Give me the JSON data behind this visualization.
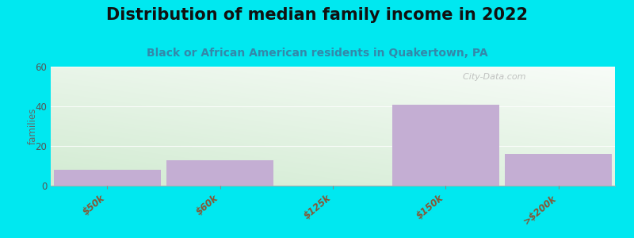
{
  "title": "Distribution of median family income in 2022",
  "subtitle": "Black or African American residents in Quakertown, PA",
  "categories": [
    "$50k",
    "$60k",
    "$125k",
    "$150k",
    ">$200k"
  ],
  "values": [
    8,
    13,
    0,
    41,
    16
  ],
  "bar_color": "#c4aed3",
  "ylim": [
    0,
    60
  ],
  "yticks": [
    0,
    20,
    40,
    60
  ],
  "ylabel": "families",
  "bg_color_top": "#f2f8ee",
  "bg_color_bottom": "#e6f2e6",
  "bg_color_right": "#f8f8f5",
  "outer_bg": "#00e8f0",
  "title_fontsize": 15,
  "subtitle_fontsize": 10,
  "subtitle_color": "#3388aa",
  "title_color": "#111111",
  "watermark": "  City-Data.com",
  "ytick_color": "#555555",
  "xtick_color": "#885533"
}
